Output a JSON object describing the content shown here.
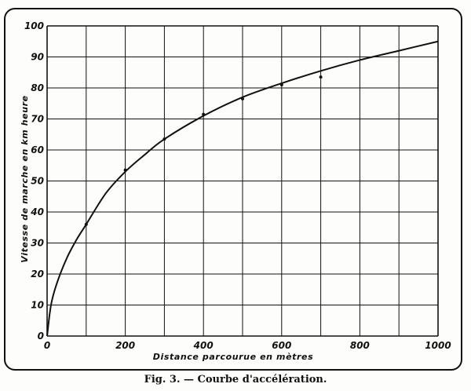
{
  "caption": "Fig. 3. — Courbe d'accélération.",
  "chart_data": {
    "type": "line",
    "xlabel": "Distance parcourue en mètres",
    "ylabel": "Vitesse de marche en km heure",
    "xlim": [
      0,
      1000
    ],
    "ylim": [
      0,
      100
    ],
    "x_ticks": [
      0,
      200,
      400,
      600,
      800,
      1000
    ],
    "y_ticks": [
      0,
      10,
      20,
      30,
      40,
      50,
      60,
      70,
      80,
      90,
      100
    ],
    "grid": true,
    "grid_x_step": 100,
    "grid_y_step": 10,
    "series": [
      {
        "x": [
          0,
          10,
          25,
          50,
          75,
          100,
          150,
          200,
          250,
          300,
          400,
          500,
          600,
          700,
          800,
          900,
          1000
        ],
        "y": [
          0,
          10,
          17,
          25,
          31,
          36,
          46,
          53,
          58.5,
          63.5,
          71,
          77,
          81.5,
          85.5,
          89,
          92,
          95
        ]
      }
    ],
    "markers": [
      {
        "x": 100,
        "y": 36
      },
      {
        "x": 200,
        "y": 53.5
      },
      {
        "x": 300,
        "y": 63.5
      },
      {
        "x": 400,
        "y": 71.5
      },
      {
        "x": 500,
        "y": 76.5
      },
      {
        "x": 600,
        "y": 81
      },
      {
        "x": 700,
        "y": 83.5
      }
    ]
  }
}
